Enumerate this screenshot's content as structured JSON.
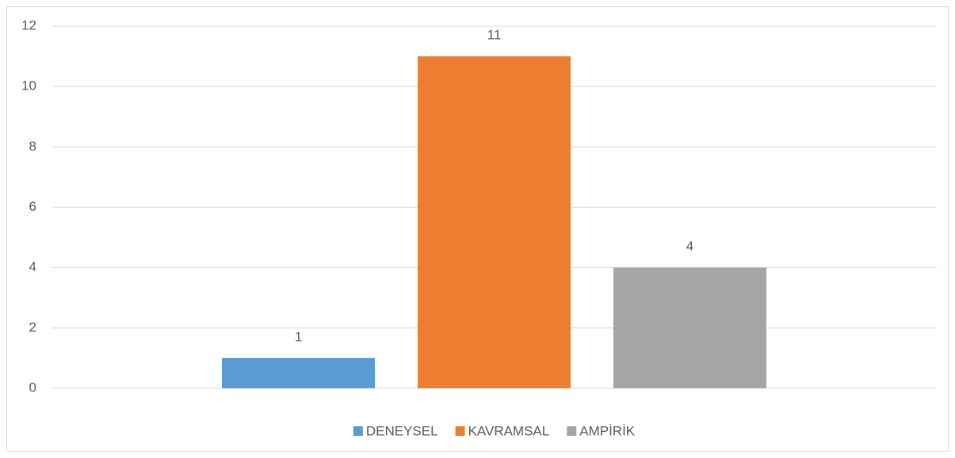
{
  "chart_data": {
    "type": "bar",
    "categories": [
      null
    ],
    "series": [
      {
        "name": "DENEYSEL",
        "color": "#5b9bd5",
        "values": [
          1
        ]
      },
      {
        "name": "KAVRAMSAL",
        "color": "#ed7d31",
        "values": [
          11
        ]
      },
      {
        "name": "AMPİRİK",
        "color": "#a5a5a5",
        "values": [
          4
        ]
      }
    ],
    "ylim": [
      0,
      12
    ],
    "yticks": [
      0,
      2,
      4,
      6,
      8,
      10,
      12
    ],
    "grid": true,
    "legend": "bottom"
  }
}
